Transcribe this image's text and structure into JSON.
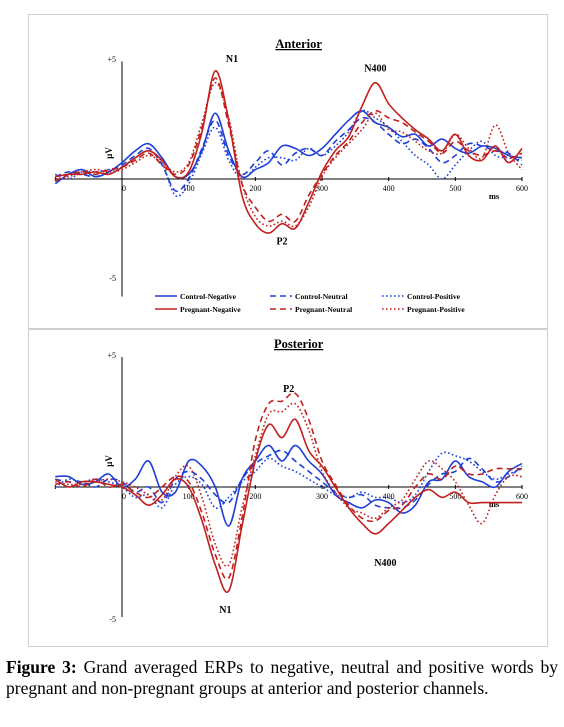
{
  "caption": {
    "label": "Figure 3:",
    "text": " Grand averaged ERPs to negative, neutral and positive words by pregnant and non-pregnant groups at anterior and posterior channels."
  },
  "series_styles": [
    {
      "name": "Control-Negative",
      "color": "#1f3fd6",
      "dash": "solid"
    },
    {
      "name": "Control-Neutral",
      "color": "#1f3fd6",
      "dash": "dashed"
    },
    {
      "name": "Control-Positive",
      "color": "#1f3fd6",
      "dash": "dotted"
    },
    {
      "name": "Pregnant-Negative",
      "color": "#c0201e",
      "dash": "solid"
    },
    {
      "name": "Pregnant-Neutral",
      "color": "#c0201e",
      "dash": "dashed"
    },
    {
      "name": "Pregnant-Positive",
      "color": "#c0201e",
      "dash": "dotted"
    }
  ],
  "chart_data": [
    {
      "type": "line",
      "title": "Anterior",
      "xlabel": "ms",
      "ylabel": "µV",
      "xlim": [
        -100,
        600
      ],
      "ylim": [
        -5,
        5
      ],
      "x_ticks": [
        "100",
        "200",
        "300",
        "400",
        "500",
        "600"
      ],
      "y_ticks": [
        "+5",
        "-5"
      ],
      "legend": "bottom",
      "annotations": [
        {
          "text": "N1",
          "x": 165,
          "y": 4.8
        },
        {
          "text": "N400",
          "x": 380,
          "y": 4.4
        },
        {
          "text": "P2",
          "x": 240,
          "y": -2.2
        }
      ],
      "x": [
        -100,
        -80,
        -60,
        -40,
        -20,
        0,
        20,
        40,
        60,
        80,
        100,
        120,
        140,
        160,
        180,
        200,
        220,
        240,
        260,
        280,
        300,
        320,
        340,
        360,
        380,
        400,
        420,
        440,
        460,
        480,
        500,
        520,
        540,
        560,
        580,
        600
      ],
      "series": [
        {
          "name": "Control-Negative",
          "values": [
            -0.2,
            0.2,
            0.4,
            0.1,
            0.3,
            0.7,
            1.2,
            1.5,
            0.9,
            0.1,
            0.2,
            1.2,
            2.8,
            1.2,
            0.1,
            0.4,
            0.7,
            1.4,
            1.3,
            1.0,
            1.3,
            1.9,
            2.5,
            2.9,
            2.4,
            2.2,
            1.8,
            1.9,
            1.4,
            1.7,
            1.3,
            1.1,
            1.4,
            1.3,
            1.0,
            0.9
          ]
        },
        {
          "name": "Control-Neutral",
          "values": [
            0.1,
            0.3,
            0.2,
            0.1,
            0.3,
            0.6,
            1.0,
            1.3,
            0.6,
            -0.5,
            0.0,
            1.3,
            2.5,
            1.0,
            0.2,
            0.7,
            1.2,
            0.6,
            1.1,
            1.3,
            1.0,
            1.6,
            2.1,
            2.6,
            2.4,
            1.9,
            1.5,
            1.7,
            1.3,
            0.7,
            1.0,
            1.5,
            1.4,
            1.2,
            1.1,
            0.6
          ]
        },
        {
          "name": "Control-Positive",
          "values": [
            0.2,
            0.0,
            0.3,
            0.3,
            0.4,
            0.5,
            0.9,
            1.2,
            0.7,
            -0.7,
            -0.2,
            1.1,
            2.2,
            0.8,
            0.0,
            0.5,
            0.9,
            0.9,
            0.8,
            1.3,
            1.0,
            1.4,
            2.0,
            2.9,
            2.6,
            2.2,
            1.6,
            1.0,
            0.6,
            0.0,
            0.6,
            1.2,
            1.6,
            1.0,
            0.9,
            0.8
          ]
        },
        {
          "name": "Pregnant-Negative",
          "values": [
            0.1,
            0.2,
            0.2,
            0.3,
            0.2,
            0.5,
            0.9,
            1.2,
            0.8,
            0.1,
            0.3,
            2.0,
            4.6,
            2.5,
            -0.7,
            -1.9,
            -2.3,
            -1.9,
            -2.1,
            -1.0,
            0.3,
            1.2,
            1.8,
            3.1,
            4.1,
            3.2,
            2.6,
            2.1,
            1.7,
            1.2,
            1.9,
            1.0,
            0.8,
            1.4,
            0.7,
            1.3
          ]
        },
        {
          "name": "Pregnant-Neutral",
          "values": [
            -0.1,
            0.2,
            0.3,
            0.2,
            0.4,
            0.5,
            0.8,
            1.1,
            0.6,
            0.2,
            0.6,
            2.2,
            4.3,
            2.3,
            -0.2,
            -1.2,
            -1.8,
            -1.5,
            -1.8,
            -0.7,
            0.2,
            1.0,
            1.6,
            2.4,
            2.9,
            2.6,
            2.4,
            2.0,
            1.6,
            1.1,
            1.6,
            1.2,
            1.0,
            1.2,
            0.9,
            1.1
          ]
        },
        {
          "name": "Pregnant-Positive",
          "values": [
            0.0,
            0.1,
            0.3,
            0.4,
            0.3,
            0.4,
            0.7,
            1.0,
            0.7,
            0.3,
            0.7,
            2.4,
            4.1,
            2.6,
            -0.2,
            -1.6,
            -2.0,
            -1.8,
            -2.0,
            -1.2,
            0.1,
            0.9,
            1.5,
            2.1,
            2.8,
            2.1,
            2.0,
            1.6,
            1.2,
            1.1,
            1.9,
            1.3,
            0.9,
            2.3,
            1.1,
            0.4
          ]
        }
      ]
    },
    {
      "type": "line",
      "title": "Posterior",
      "xlabel": "ms",
      "ylabel": "µV",
      "xlim": [
        -100,
        600
      ],
      "ylim": [
        -5,
        5
      ],
      "x_ticks": [
        "100",
        "200",
        "300",
        "400",
        "500",
        "600"
      ],
      "y_ticks": [
        "+5",
        "-5"
      ],
      "legend": "none",
      "annotations": [
        {
          "text": "P2",
          "x": 250,
          "y": 3.5
        },
        {
          "text": "N400",
          "x": 395,
          "y": -2.5
        },
        {
          "text": "N1",
          "x": 155,
          "y": -4.3
        }
      ],
      "x": [
        -100,
        -80,
        -60,
        -40,
        -20,
        0,
        20,
        40,
        60,
        80,
        100,
        120,
        140,
        160,
        180,
        200,
        220,
        240,
        260,
        280,
        300,
        320,
        340,
        360,
        380,
        400,
        420,
        440,
        460,
        480,
        500,
        520,
        540,
        560,
        580,
        600
      ],
      "series": [
        {
          "name": "Control-Negative",
          "values": [
            0.4,
            0.4,
            0.1,
            0.2,
            0.5,
            0.0,
            0.3,
            1.0,
            -0.2,
            -0.2,
            1.0,
            0.8,
            0.0,
            -1.5,
            0.3,
            1.0,
            1.6,
            1.0,
            1.6,
            1.0,
            0.5,
            -0.3,
            -0.6,
            -0.8,
            -0.5,
            -0.6,
            -1.0,
            -0.7,
            0.2,
            0.3,
            1.0,
            0.4,
            0.2,
            0.0,
            0.6,
            0.9
          ]
        },
        {
          "name": "Control-Neutral",
          "values": [
            0.3,
            0.2,
            0.2,
            0.0,
            0.3,
            0.2,
            -0.2,
            0.0,
            -0.6,
            0.3,
            0.6,
            0.3,
            -0.3,
            -0.6,
            0.3,
            0.9,
            1.2,
            1.4,
            1.0,
            0.6,
            0.2,
            -0.2,
            -0.4,
            -0.3,
            -0.7,
            -0.8,
            -0.8,
            -0.5,
            0.1,
            0.5,
            0.6,
            1.1,
            0.7,
            0.2,
            0.4,
            0.8
          ]
        },
        {
          "name": "Control-Positive",
          "values": [
            0.0,
            0.3,
            0.2,
            0.3,
            0.2,
            0.0,
            -0.4,
            -0.3,
            -0.8,
            0.1,
            0.4,
            0.1,
            -0.8,
            -0.4,
            0.2,
            0.6,
            1.1,
            0.8,
            0.6,
            0.3,
            0.0,
            -0.3,
            -0.4,
            -0.2,
            -0.4,
            -0.4,
            -0.6,
            -0.3,
            0.6,
            1.3,
            1.2,
            1.0,
            0.6,
            0.3,
            0.5,
            0.7
          ]
        },
        {
          "name": "Pregnant-Negative",
          "values": [
            0.3,
            0.0,
            0.2,
            0.2,
            0.1,
            0.0,
            -0.3,
            -0.7,
            -0.3,
            0.3,
            0.0,
            -1.3,
            -3.0,
            -4.0,
            -1.5,
            1.0,
            2.4,
            1.9,
            2.6,
            1.4,
            0.8,
            0.0,
            -0.8,
            -1.4,
            -1.8,
            -1.4,
            -0.9,
            -0.4,
            -0.1,
            -0.4,
            -0.2,
            -0.6,
            -0.6,
            -0.6,
            -0.6,
            -0.6
          ]
        },
        {
          "name": "Pregnant-Neutral",
          "values": [
            0.1,
            0.2,
            0.0,
            0.3,
            0.0,
            0.1,
            -0.2,
            -0.4,
            0.0,
            0.4,
            0.2,
            -1.0,
            -2.6,
            -3.5,
            -1.2,
            1.8,
            3.2,
            3.3,
            3.6,
            2.6,
            1.0,
            0.1,
            -0.7,
            -1.2,
            -1.3,
            -0.9,
            -0.7,
            0.0,
            0.5,
            0.3,
            0.8,
            0.5,
            0.5,
            0.7,
            0.7,
            0.7
          ]
        },
        {
          "name": "Pregnant-Positive",
          "values": [
            0.2,
            0.1,
            0.1,
            0.2,
            0.3,
            0.2,
            0.0,
            -0.3,
            -0.5,
            0.4,
            0.8,
            -0.4,
            -2.2,
            -3.0,
            -0.8,
            1.2,
            2.8,
            2.9,
            3.2,
            2.2,
            0.6,
            -0.2,
            -0.8,
            -1.0,
            -1.2,
            -0.8,
            -0.5,
            0.3,
            1.0,
            0.7,
            0.2,
            -0.7,
            -1.4,
            -0.3,
            0.4,
            0.4
          ]
        }
      ]
    }
  ]
}
